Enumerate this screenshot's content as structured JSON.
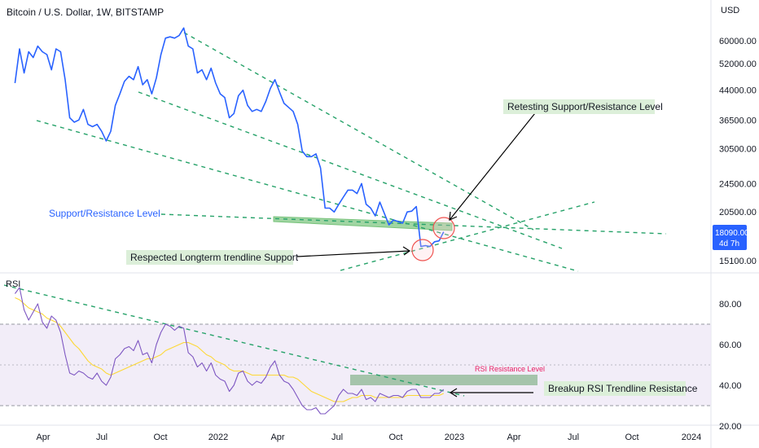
{
  "header": {
    "title": "Bitcoin / U.S. Dollar, 1W, BITSTAMP",
    "currency": "USD"
  },
  "price_badge": {
    "value": "18090.00",
    "countdown": "4d 7h",
    "color": "#2962ff"
  },
  "rsi_label": "RSI",
  "annotations": {
    "support_resistance": "Support/Resistance Level",
    "retesting": "Retesting Support/Resistance Level",
    "respected": "Respected Longterm trendline Support",
    "rsi_resistance": "RSI Resistance Level",
    "breakup": "Breakup RSI Trendline Resistance"
  },
  "colors": {
    "price_line": "#2962ff",
    "rsi_line": "#7e57c2",
    "rsi_ma": "#fdd835",
    "trendline": "#26a269",
    "zone_fill": "#81c784",
    "label_bg": "#dcefd9",
    "rsi_band": "#ede7f6",
    "rsi_res_text": "#e91e63",
    "circle": "#ef5350"
  },
  "chart_data": [
    {
      "type": "line",
      "title": "Bitcoin / U.S. Dollar, 1W, BITSTAMP",
      "x_labels": [
        "Apr",
        "Jul",
        "Oct",
        "2022",
        "Apr",
        "Jul",
        "Oct",
        "2023",
        "Apr",
        "Jul",
        "Oct",
        "2024"
      ],
      "y_scale": "log",
      "y_ticks": [
        60000,
        52000,
        44000,
        36500,
        30500,
        24500,
        20500,
        15100
      ],
      "y_tick_labels": [
        "60000.00",
        "52000.00",
        "44000.00",
        "36500.00",
        "30500.00",
        "24500.00",
        "20500.00",
        "15100.00"
      ],
      "series": [
        {
          "x": [
            "2021-02-22",
            "2021-03-01",
            "2021-03-08",
            "2021-03-15",
            "2021-03-22",
            "2021-03-29",
            "2021-04-05",
            "2021-04-12",
            "2021-04-19",
            "2021-04-26",
            "2021-05-03",
            "2021-05-10",
            "2021-05-17",
            "2021-05-24",
            "2021-05-31",
            "2021-06-07",
            "2021-06-14",
            "2021-06-21",
            "2021-06-28",
            "2021-07-05",
            "2021-07-12",
            "2021-07-19",
            "2021-07-26",
            "2021-08-02",
            "2021-08-09",
            "2021-08-16",
            "2021-08-23",
            "2021-08-30",
            "2021-09-06",
            "2021-09-13",
            "2021-09-20",
            "2021-09-27",
            "2021-10-04",
            "2021-10-11",
            "2021-10-18",
            "2021-10-25",
            "2021-11-01",
            "2021-11-08",
            "2021-11-15",
            "2021-11-22",
            "2021-11-29",
            "2021-12-06",
            "2021-12-13",
            "2021-12-20",
            "2021-12-27",
            "2022-01-03",
            "2022-01-10",
            "2022-01-17",
            "2022-01-24",
            "2022-01-31",
            "2022-02-07",
            "2022-02-14",
            "2022-02-21",
            "2022-02-28",
            "2022-03-07",
            "2022-03-14",
            "2022-03-21",
            "2022-03-28",
            "2022-04-04",
            "2022-04-11",
            "2022-04-18",
            "2022-04-25",
            "2022-05-02",
            "2022-05-09",
            "2022-05-16",
            "2022-05-23",
            "2022-05-30",
            "2022-06-06",
            "2022-06-13",
            "2022-06-20",
            "2022-06-27",
            "2022-07-04",
            "2022-07-11",
            "2022-07-18",
            "2022-07-25",
            "2022-08-01",
            "2022-08-08",
            "2022-08-15",
            "2022-08-22",
            "2022-08-29",
            "2022-09-05",
            "2022-09-12",
            "2022-09-19",
            "2022-09-26",
            "2022-10-03",
            "2022-10-10",
            "2022-10-17",
            "2022-10-24",
            "2022-10-31",
            "2022-11-07",
            "2022-11-14",
            "2022-11-21",
            "2022-11-28",
            "2022-12-05",
            "2022-12-12"
          ],
          "values": [
            46000,
            57000,
            49000,
            56000,
            54000,
            58000,
            56000,
            55000,
            50000,
            57000,
            56000,
            47000,
            37000,
            36000,
            36500,
            39000,
            35500,
            35000,
            35500,
            34000,
            32000,
            34000,
            40000,
            43000,
            46500,
            48000,
            47000,
            51000,
            45500,
            47000,
            43000,
            47500,
            55000,
            61000,
            61500,
            61000,
            62000,
            65000,
            58000,
            57000,
            49000,
            50000,
            47000,
            50500,
            46000,
            43000,
            42000,
            37000,
            38000,
            42500,
            44000,
            40000,
            38500,
            39000,
            38500,
            41000,
            44500,
            47000,
            43500,
            40500,
            39500,
            38500,
            35500,
            30000,
            29000,
            29000,
            29500,
            27000,
            21000,
            21000,
            20500,
            21500,
            22500,
            23500,
            23500,
            23000,
            24500,
            21500,
            21000,
            20000,
            21800,
            20300,
            18900,
            19500,
            19300,
            19100,
            20500,
            20600,
            21200,
            16500,
            16600,
            16500,
            17000,
            17100,
            18090
          ]
        }
      ]
    },
    {
      "type": "line",
      "title": "RSI",
      "y_ticks": [
        80,
        60,
        40,
        20
      ],
      "y_tick_labels": [
        "80.00",
        "60.00",
        "40.00",
        "20.00"
      ],
      "band": [
        30,
        70
      ],
      "series": [
        {
          "name": "RSI",
          "values": [
            85,
            88,
            77,
            72,
            76,
            80,
            71,
            68,
            74,
            72,
            66,
            55,
            46,
            45,
            47,
            46,
            44,
            43,
            46,
            42,
            40,
            44,
            53,
            55,
            58,
            59,
            57,
            62,
            55,
            56,
            51,
            60,
            66,
            70,
            69,
            67,
            69,
            68,
            56,
            54,
            49,
            51,
            47,
            51,
            45,
            43,
            42,
            37,
            40,
            46,
            47,
            42,
            40,
            42,
            41,
            44,
            49,
            52,
            45,
            42,
            41,
            38,
            34,
            30,
            28,
            28,
            29,
            26,
            26,
            28,
            30,
            35,
            38,
            36,
            36,
            35,
            38,
            33,
            34,
            32,
            36,
            35,
            34,
            35,
            35,
            34,
            37,
            38,
            38,
            34,
            34,
            34,
            36,
            36,
            38
          ]
        },
        {
          "name": "MA",
          "values": [
            83,
            82,
            80,
            78,
            77,
            76,
            75,
            73,
            72,
            71,
            69,
            66,
            63,
            60,
            58,
            55,
            52,
            50,
            49,
            48,
            46,
            45,
            46,
            47,
            48,
            49,
            50,
            51,
            52,
            53,
            53,
            54,
            55,
            57,
            58,
            59,
            60,
            61,
            61,
            60,
            59,
            57,
            55,
            54,
            52,
            51,
            50,
            48,
            47,
            47,
            47,
            46,
            45,
            45,
            45,
            45,
            45,
            45,
            45,
            45,
            44,
            44,
            43,
            41,
            39,
            37,
            36,
            35,
            34,
            33,
            32,
            32,
            32,
            33,
            34,
            34,
            35,
            35,
            35,
            34,
            34,
            34,
            34,
            34,
            34,
            34,
            35,
            35,
            35,
            35,
            35,
            35,
            35,
            35,
            36
          ]
        }
      ]
    }
  ]
}
